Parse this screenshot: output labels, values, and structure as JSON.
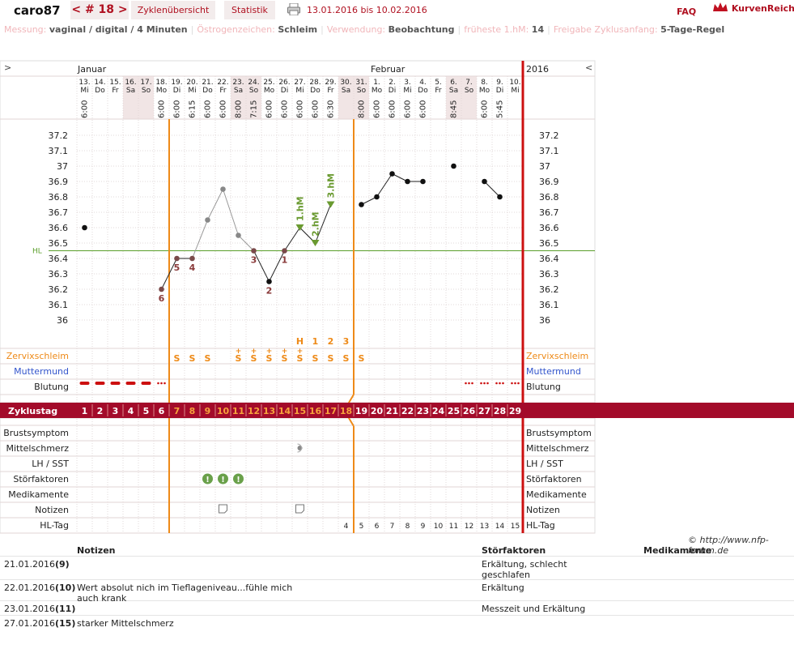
{
  "header": {
    "username": "caro87",
    "cycle_nav": "< # 18 >",
    "tabs": [
      "Zyklenübersicht",
      "Statistik"
    ],
    "date_range": "13.01.2016 bis 10.02.2016",
    "faq": "FAQ",
    "logo": "KurvenReich",
    "print_icon": "printer-icon",
    "logo_icon": "crown-icon"
  },
  "info": [
    {
      "k": "Messung:",
      "v": "vaginal / digital / 4 Minuten"
    },
    {
      "k": "Östrogenzeichen:",
      "v": "Schleim"
    },
    {
      "k": "Verwendung:",
      "v": "Beobachtung"
    },
    {
      "k": "früheste 1.hM:",
      "v": "14"
    },
    {
      "k": "Freigabe Zyklusanfang:",
      "v": "5-Tage-Regel"
    }
  ],
  "chart_data": {
    "type": "line",
    "title": "",
    "xlabel": "",
    "ylabel": "",
    "ylim": [
      35.9,
      37.3
    ],
    "yticks": [
      "37.2",
      "37.1",
      "37",
      "36.9",
      "36.8",
      "36.7",
      "36.6",
      "36.5",
      "36.4",
      "36.3",
      "36.2",
      "36.1",
      "36"
    ],
    "year": "2016",
    "nav_left": ">",
    "nav_right": "<",
    "month_jan": "Januar",
    "month_feb": "Februar",
    "hl_label": "HL",
    "hl_value": 36.45,
    "date_nums": [
      "13.",
      "14.",
      "15.",
      "16.",
      "17.",
      "18.",
      "19.",
      "20.",
      "21.",
      "22.",
      "23.",
      "24.",
      "25.",
      "26.",
      "27.",
      "28.",
      "29.",
      "30.",
      "31.",
      "1.",
      "2.",
      "3.",
      "4.",
      "5.",
      "6.",
      "7.",
      "8.",
      "9.",
      "10."
    ],
    "weekdays": [
      "Mi",
      "Do",
      "Fr",
      "Sa",
      "So",
      "Mo",
      "Di",
      "Mi",
      "Do",
      "Fr",
      "Sa",
      "So",
      "Mo",
      "Di",
      "Mi",
      "Do",
      "Fr",
      "Sa",
      "So",
      "Mo",
      "Di",
      "Mi",
      "Do",
      "Fr",
      "Sa",
      "So",
      "Mo",
      "Di",
      "Mi"
    ],
    "times": [
      "6:00",
      "",
      "",
      "",
      "",
      "6:00",
      "6:00",
      "6:15",
      "6:00",
      "6:00",
      "8:00",
      "7:15",
      "6:00",
      "6:00",
      "6:00",
      "6:00",
      "6:30",
      "",
      "8:00",
      "6:00",
      "6:00",
      "6:00",
      "6:00",
      "",
      "8:45",
      "",
      "6:00",
      "5:45",
      ""
    ],
    "temperatures": [
      36.6,
      null,
      null,
      null,
      null,
      36.2,
      36.4,
      36.4,
      36.65,
      36.85,
      36.55,
      36.45,
      36.25,
      36.45,
      36.6,
      36.5,
      36.75,
      null,
      36.75,
      36.8,
      36.95,
      36.9,
      36.9,
      null,
      37.0,
      null,
      36.9,
      36.8,
      null
    ],
    "point_labels": {
      "5": "6",
      "6": "5",
      "7": "4",
      "11": "3",
      "12": "2",
      "13": "1"
    },
    "hm_labels": {
      "14": "1.hM",
      "15": "2.hM",
      "16": "3.hM"
    },
    "peak_markers": [
      "H",
      "1",
      "2",
      "3"
    ],
    "cycle_days": [
      "1",
      "2",
      "3",
      "4",
      "5",
      "6",
      "7",
      "8",
      "9",
      "10",
      "11",
      "12",
      "13",
      "14",
      "15",
      "16",
      "17",
      "18",
      "19",
      "20",
      "21",
      "22",
      "23",
      "24",
      "25",
      "26",
      "27",
      "28",
      "29"
    ],
    "hl_days": [
      "4",
      "5",
      "6",
      "7",
      "8",
      "9",
      "10",
      "11",
      "12",
      "13",
      "14",
      "15"
    ],
    "cervix_symbols": [
      "",
      "",
      "",
      "",
      "",
      "",
      "S",
      "S",
      "S",
      "",
      "S+",
      "S+",
      "S+",
      "S+",
      "S+",
      "S",
      "S",
      "S",
      "S",
      "",
      "",
      "",
      "",
      "",
      "",
      "",
      "",
      "",
      ""
    ],
    "bleeding_levels": [
      "heavy",
      "heavy",
      "heavy",
      "heavy",
      "heavy",
      "spot",
      "",
      "",
      "",
      "",
      "",
      "",
      "",
      "",
      "",
      "",
      "",
      "",
      "",
      "",
      "",
      "",
      "",
      "",
      "",
      "spot",
      "spot",
      "spot",
      "spot"
    ],
    "row_labels_left": [
      "Zervixschleim",
      "Muttermund",
      "Blutung",
      "Zyklustag",
      "Brustsymptom",
      "Mittelschmerz",
      "LH / SST",
      "Störfaktoren",
      "Medikamente",
      "Notizen",
      "HL-Tag"
    ],
    "row_labels_right": [
      "Zervixschleim",
      "Muttermund",
      "Blutung",
      "",
      "Brustsymptom",
      "Mittelschmerz",
      "LH / SST",
      "Störfaktoren",
      "Medikamente",
      "Notizen",
      "HL-Tag"
    ],
    "colors": {
      "cycle_bar": "#a30b2a",
      "accent_orange": "#ee8a18",
      "hl_line": "#5a9e2a",
      "hm_green": "#6a9a30",
      "point_label": "#8a3a3a"
    },
    "icons": {
      "stoerfaktor": "exclamation-circle-icon",
      "notiz": "note-icon",
      "mittelschmerz": "pain-dot-icon"
    }
  },
  "notes_table": {
    "headers": [
      "Notizen",
      "Störfaktoren",
      "Medikamente"
    ],
    "rows": [
      {
        "date": "21.01.2016",
        "day": "(9)",
        "note": "",
        "stoer": "Erkältung, schlecht geschlafen",
        "med": ""
      },
      {
        "date": "22.01.2016",
        "day": "(10)",
        "note": "Wert absolut nich im Tieflageniveau...fühle mich auch krank",
        "stoer": "Erkältung",
        "med": ""
      },
      {
        "date": "23.01.2016",
        "day": "(11)",
        "note": "",
        "stoer": "Messzeit und Erkältung",
        "med": ""
      },
      {
        "date": "27.01.2016",
        "day": "(15)",
        "note": "starker Mittelschmerz",
        "stoer": "",
        "med": ""
      }
    ]
  },
  "copyright": "© http://www.nfp-forum.de"
}
